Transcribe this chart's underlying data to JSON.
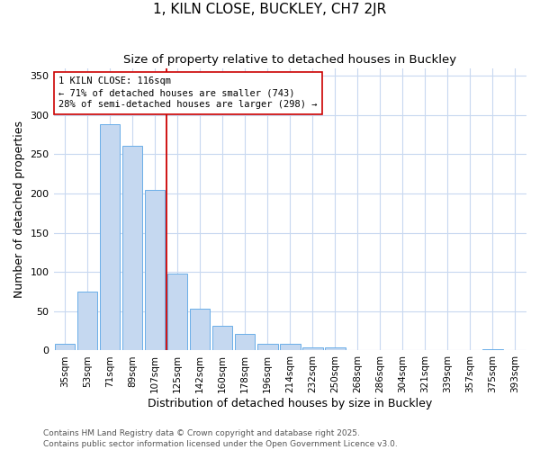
{
  "title": "1, KILN CLOSE, BUCKLEY, CH7 2JR",
  "subtitle": "Size of property relative to detached houses in Buckley",
  "xlabel": "Distribution of detached houses by size in Buckley",
  "ylabel": "Number of detached properties",
  "bar_labels": [
    "35sqm",
    "53sqm",
    "71sqm",
    "89sqm",
    "107sqm",
    "125sqm",
    "142sqm",
    "160sqm",
    "178sqm",
    "196sqm",
    "214sqm",
    "232sqm",
    "250sqm",
    "268sqm",
    "286sqm",
    "304sqm",
    "321sqm",
    "339sqm",
    "357sqm",
    "375sqm",
    "393sqm"
  ],
  "bar_heights": [
    8,
    75,
    288,
    261,
    205,
    98,
    53,
    31,
    21,
    8,
    8,
    4,
    4,
    0,
    0,
    0,
    0,
    0,
    0,
    2,
    0
  ],
  "bar_color": "#c5d8f0",
  "bar_edge_color": "#6aaee8",
  "vline_color": "#cc0000",
  "vline_x": 4.5,
  "annotation_text": "1 KILN CLOSE: 116sqm\n← 71% of detached houses are smaller (743)\n28% of semi-detached houses are larger (298) →",
  "annotation_box_facecolor": "white",
  "annotation_box_edgecolor": "#cc0000",
  "ylim": [
    0,
    360
  ],
  "yticks": [
    0,
    50,
    100,
    150,
    200,
    250,
    300,
    350
  ],
  "background_color": "#ffffff",
  "grid_color": "#c8d8f0",
  "title_fontsize": 11,
  "subtitle_fontsize": 9.5,
  "axis_label_fontsize": 9,
  "tick_fontsize": 7.5,
  "annotation_fontsize": 7.5,
  "footer_fontsize": 6.5,
  "footer_text": "Contains HM Land Registry data © Crown copyright and database right 2025.\nContains public sector information licensed under the Open Government Licence v3.0."
}
